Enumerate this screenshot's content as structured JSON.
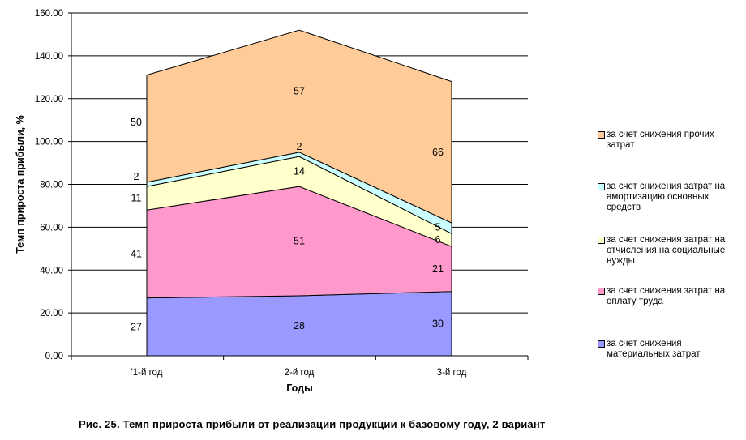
{
  "chart_data": {
    "type": "area",
    "stacked": true,
    "categories": [
      "'1-й год",
      "2-й год",
      "3-й год"
    ],
    "series": [
      {
        "name": "за счет снижения материальных затрат",
        "values": [
          27,
          28,
          30
        ],
        "labels": [
          "27",
          "28",
          "30"
        ],
        "color": "#9999ff"
      },
      {
        "name": "за счет снижения затрат на оплату труда",
        "values": [
          41,
          51,
          21
        ],
        "labels": [
          "41",
          "51",
          "21"
        ],
        "color": "#ff99cc"
      },
      {
        "name": "за счет снижения затрат на отчисления на социальные нужды",
        "values": [
          11,
          14,
          6
        ],
        "labels": [
          "11",
          "14",
          "6"
        ],
        "color": "#ffffcc"
      },
      {
        "name": "за счет снижения затрат на амортизацию основных средств",
        "values": [
          2,
          2,
          5
        ],
        "labels": [
          "2",
          "2",
          "5"
        ],
        "color": "#ccffff"
      },
      {
        "name": "за счет снижения прочих затрат",
        "values": [
          50,
          57,
          66
        ],
        "labels": [
          "50",
          "57",
          "66"
        ],
        "color": "#ffcc99"
      }
    ],
    "xlabel": "Годы",
    "ylabel": "Темп прироста прибыли, %",
    "ylim": [
      0,
      160
    ],
    "yticks": [
      "0.00",
      "20.00",
      "40.00",
      "60.00",
      "80.00",
      "100.00",
      "120.00",
      "140.00",
      "160.00"
    ],
    "grid": true,
    "legend": "right"
  },
  "caption": "Рис. 25. Темп прироста прибыли от реализации продукции к базовому году, 2 вариант"
}
